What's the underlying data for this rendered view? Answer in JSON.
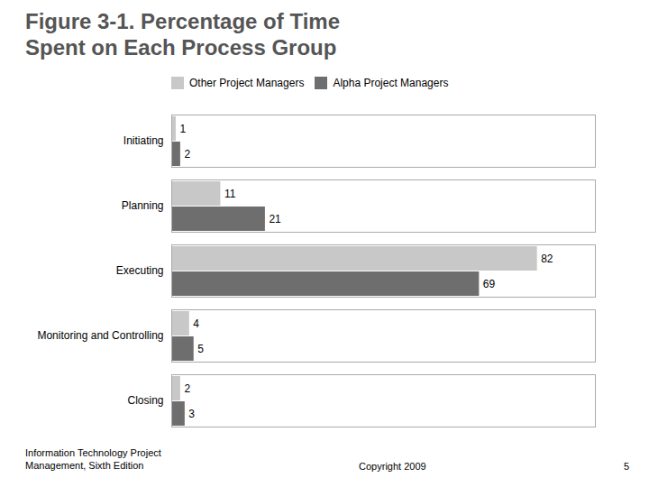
{
  "chart_data": {
    "type": "bar",
    "orientation": "horizontal",
    "title": "Figure 3-1. Percentage of Time\nSpent on Each Process Group",
    "categories": [
      "Initiating",
      "Planning",
      "Executing",
      "Monitoring and Controlling",
      "Closing"
    ],
    "series": [
      {
        "name": "Other Project Managers",
        "color": "#c8c8c8",
        "values": [
          1,
          11,
          82,
          4,
          2
        ]
      },
      {
        "name": "Alpha Project Managers",
        "color": "#6e6e6e",
        "values": [
          2,
          21,
          69,
          5,
          3
        ]
      }
    ],
    "xlim": [
      0,
      95
    ],
    "data_labels": true,
    "tick_labels": "y",
    "grid": false,
    "legend": "top left",
    "annotations": [
      "Information Technology Project\nManagement, Sixth Edition",
      "Copyright 2009",
      "5"
    ]
  }
}
